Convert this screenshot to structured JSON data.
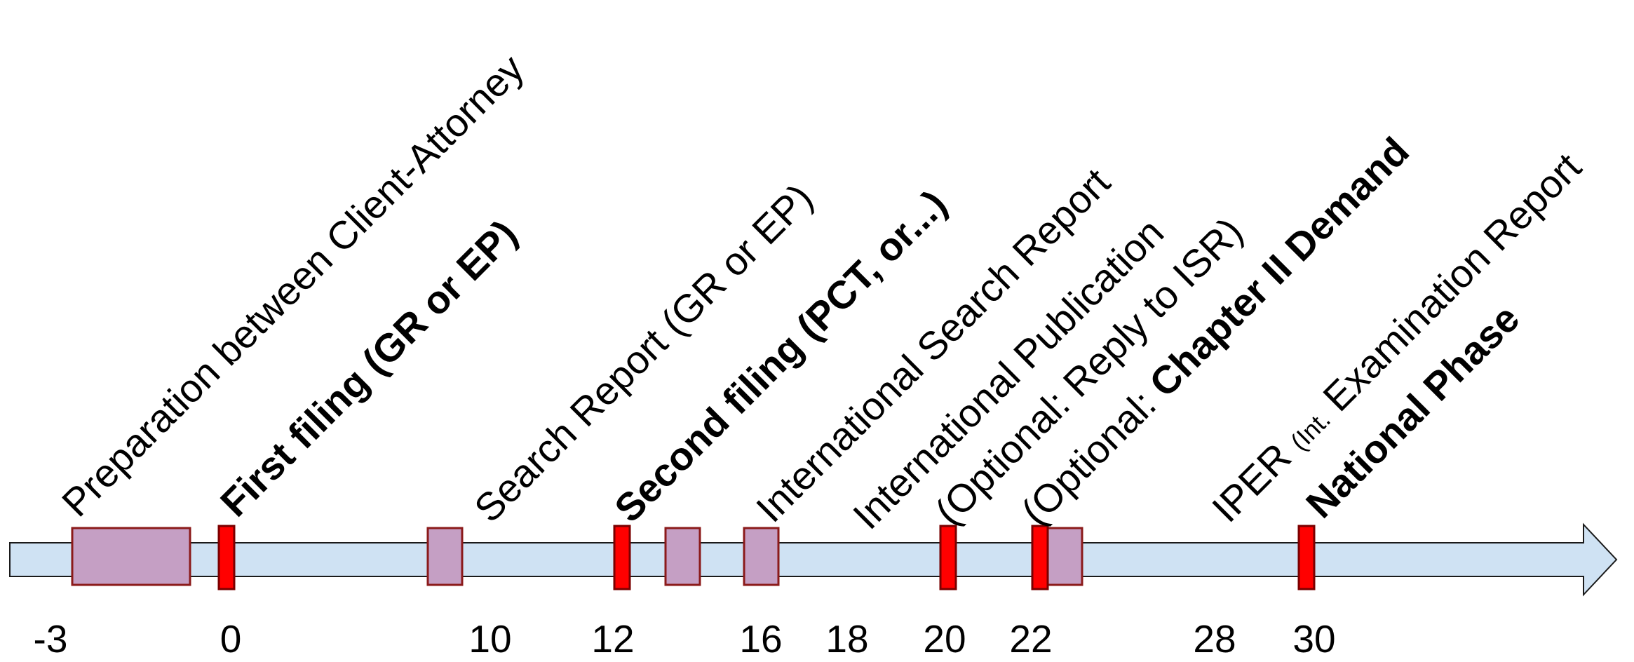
{
  "colors": {
    "arrow_fill": "#cfe2f3",
    "arrow_stroke": "#1a1a1a",
    "phase_block_fill": "#c59fc4",
    "phase_block_stroke": "#8b1a1a",
    "milestone_fill": "#ff0000",
    "milestone_stroke": "#7a0000",
    "text": "#000000"
  },
  "timeline": {
    "ticks": [
      "-3",
      "0",
      "10",
      "12",
      "16",
      "18",
      "20",
      "22",
      "28",
      "30"
    ]
  },
  "events": [
    {
      "label": "Preparation between Client-Attorney",
      "bold": ""
    },
    {
      "label": "",
      "bold": "First filing (GR or EP)"
    },
    {
      "label": "Search Report (GR or EP)",
      "bold": ""
    },
    {
      "label": "",
      "bold": "Second filing (PCT, or...)"
    },
    {
      "label": "International Search Report",
      "bold": ""
    },
    {
      "label": "International Publication",
      "bold": ""
    },
    {
      "label": "(Optional: Reply to ISR)",
      "bold": ""
    },
    {
      "label": "(Optional: ",
      "bold": "Chapter II Demand"
    },
    {
      "label": "IPER ",
      "small": "(Int.",
      "label_after": " Examination Report",
      "bold": ""
    },
    {
      "label": "",
      "bold": "National Phase"
    }
  ]
}
